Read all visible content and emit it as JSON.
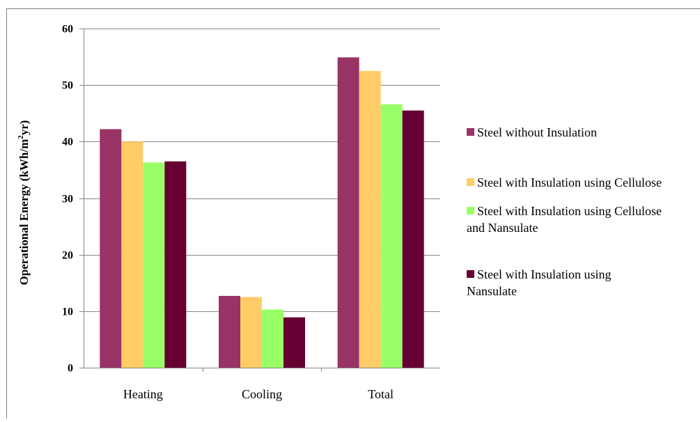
{
  "chart_data": {
    "type": "bar",
    "title": "",
    "xlabel": "",
    "ylabel": {
      "main": "Operational Energy (kWh/m",
      "sup": "2",
      "end": "yr)"
    },
    "ylim": [
      0,
      60
    ],
    "yticks": [
      "0",
      "10",
      "20",
      "30",
      "40",
      "50",
      "60"
    ],
    "grid": true,
    "legend_position": "right",
    "categories": [
      "Heating",
      "Cooling",
      "Total"
    ],
    "series": [
      {
        "name": "Steel without Insulation",
        "name_lines": [
          "Steel without Insulation"
        ],
        "color": "#993366",
        "values": [
          42.2,
          12.7,
          54.9
        ]
      },
      {
        "name": "Steel with Insulation using Cellulose",
        "name_lines": [
          "Steel with Insulation using Cellulose"
        ],
        "color": "#ffcc66",
        "values": [
          40.0,
          12.5,
          52.5
        ]
      },
      {
        "name": "Steel with Insulation using Cellulose and Nansulate",
        "name_lines": [
          "Steel with Insulation using Cellulose",
          "and Nansulate"
        ],
        "color": "#99ff66",
        "values": [
          36.3,
          10.3,
          46.6
        ]
      },
      {
        "name": "Steel with Insulation using Nansulate",
        "name_lines": [
          "Steel with Insulation using",
          "Nansulate"
        ],
        "color": "#660033",
        "values": [
          36.5,
          8.9,
          45.5
        ]
      }
    ]
  }
}
